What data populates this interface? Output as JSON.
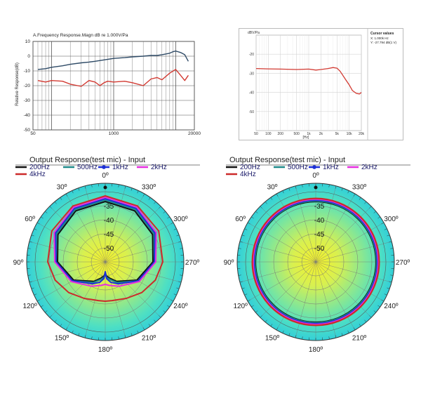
{
  "chart_data": [
    {
      "type": "line",
      "title": "A.Frequency Response.Magn dB re 1.000V/Pa",
      "ylabel": "Relative Response(dB)",
      "xscale": "log",
      "xlim": [
        50,
        20000
      ],
      "ylim": [
        -50,
        10
      ],
      "xticks": [
        "50",
        "1000",
        "20000"
      ],
      "yticks": [
        "10",
        "0",
        "-10",
        "-20",
        "-30",
        "-40",
        "-50"
      ],
      "grid": true,
      "series": [
        {
          "color": "#2e4a66",
          "x": [
            60,
            80,
            100,
            150,
            200,
            300,
            400,
            500,
            700,
            1000,
            1500,
            2000,
            3000,
            4000,
            5000,
            6000,
            7000,
            8000,
            9000,
            10000,
            12000,
            14000,
            16000
          ],
          "y": [
            -9,
            -8.5,
            -7.5,
            -6.5,
            -5.5,
            -4.5,
            -4,
            -3.5,
            -2.5,
            -1.5,
            -1,
            -0.5,
            0,
            0.5,
            0.5,
            1,
            1.5,
            2,
            3,
            3.5,
            2.5,
            1,
            -3.5
          ]
        },
        {
          "color": "#d23a32",
          "x": [
            60,
            80,
            100,
            150,
            200,
            300,
            400,
            500,
            600,
            700,
            800,
            1000,
            1500,
            2000,
            3000,
            4000,
            5000,
            6000,
            8000,
            10000,
            12000,
            14000,
            16000
          ],
          "y": [
            -16.5,
            -17.5,
            -16.5,
            -17,
            -19,
            -20.5,
            -16.5,
            -17.5,
            -20,
            -18,
            -17,
            -17.5,
            -17,
            -18,
            -20,
            -15.5,
            -14.5,
            -16,
            -11.5,
            -9,
            -13,
            -16.5,
            -13
          ]
        }
      ]
    },
    {
      "type": "line",
      "title": "dBV/Pa",
      "xlabel": "[Hz]",
      "xscale": "log",
      "xlim": [
        50,
        20000
      ],
      "ylim": [
        -60,
        -10
      ],
      "xticks": [
        "50",
        "100",
        "200",
        "500",
        "1k",
        "2k",
        "5k",
        "10k",
        "20k"
      ],
      "yticks": [
        "-20",
        "-30",
        "-40",
        "-50"
      ],
      "grid": true,
      "cursor": {
        "title": "Cursor values",
        "x_text": "X: 1.000k Hz",
        "y_text": "Y: -27.794 dB(1 V)"
      },
      "series": [
        {
          "color": "#d23a32",
          "x": [
            50,
            100,
            200,
            500,
            1000,
            1500,
            2000,
            3000,
            4000,
            5000,
            6000,
            8000,
            10000,
            12000,
            15000,
            18000,
            20000
          ],
          "y": [
            -27.5,
            -27.7,
            -27.8,
            -28,
            -27.8,
            -28.3,
            -28,
            -27.5,
            -27,
            -27.3,
            -29,
            -33,
            -36,
            -39,
            -40.5,
            -40.8,
            -40
          ]
        }
      ]
    },
    {
      "type": "polar",
      "title": "Output Response(test mic) - Input",
      "legend": [
        "200Hz",
        "500Hz",
        "1kHz",
        "2kHz",
        "4kHz"
      ],
      "rlim": [
        -55,
        -30
      ],
      "r_ticks": [
        "-35",
        "-40",
        "-45",
        "-50"
      ],
      "angle_labels": [
        "0º",
        "30º",
        "60º",
        "90º",
        "120º",
        "150º",
        "180º",
        "210º",
        "240º",
        "270º",
        "300º",
        "330º"
      ],
      "series": [
        {
          "name": "200Hz",
          "color": "#111111",
          "theta": [
            0,
            30,
            60,
            90,
            120,
            150,
            165,
            175,
            180,
            185,
            195,
            210,
            240,
            270,
            300,
            330
          ],
          "r": [
            -33.5,
            -34,
            -35.5,
            -38,
            -42,
            -47,
            -49,
            -50,
            -51,
            -50,
            -49,
            -47,
            -42,
            -38,
            -35.5,
            -34
          ]
        },
        {
          "name": "500Hz",
          "color": "#1e8a8a",
          "theta": [
            0,
            30,
            60,
            90,
            120,
            150,
            165,
            175,
            180,
            185,
            195,
            210,
            240,
            270,
            300,
            330
          ],
          "r": [
            -33,
            -33.5,
            -35,
            -37.5,
            -41.5,
            -46.5,
            -48.5,
            -49.5,
            -50.5,
            -49.5,
            -48.5,
            -46.5,
            -41.5,
            -37.5,
            -35,
            -33.5
          ]
        },
        {
          "name": "1kHz",
          "color": "#1c2fd6",
          "theta": [
            0,
            30,
            60,
            90,
            120,
            150,
            165,
            175,
            180,
            185,
            195,
            210,
            240,
            270,
            300,
            330
          ],
          "r": [
            -32.5,
            -33,
            -34.5,
            -37.5,
            -41.5,
            -46,
            -47.5,
            -49,
            -51.5,
            -49,
            -47.5,
            -46,
            -41.5,
            -37.5,
            -34.5,
            -33
          ]
        },
        {
          "name": "2kHz",
          "color": "#e62ee0",
          "theta": [
            0,
            30,
            60,
            90,
            120,
            150,
            170,
            180,
            190,
            210,
            240,
            270,
            300,
            330
          ],
          "r": [
            -32,
            -32.5,
            -34,
            -37,
            -41,
            -45,
            -46.5,
            -47,
            -46.5,
            -45,
            -41,
            -37,
            -34,
            -32.5
          ]
        },
        {
          "name": "4kHz",
          "color": "#cc2a2a",
          "theta": [
            0,
            30,
            60,
            90,
            110,
            130,
            150,
            170,
            180,
            190,
            210,
            230,
            250,
            270,
            300,
            330
          ],
          "r": [
            -31.5,
            -32,
            -33,
            -34.5,
            -36,
            -38,
            -40,
            -41,
            -41,
            -41,
            -40,
            -38,
            -36,
            -34.5,
            -33,
            -32
          ]
        }
      ]
    },
    {
      "type": "polar",
      "title": "Output Response(test mic) - Input",
      "legend": [
        "200Hz",
        "500Hz",
        "1kHz",
        "2kHz",
        "4kHz"
      ],
      "rlim": [
        -55,
        -30
      ],
      "r_ticks": [
        "-35",
        "-40",
        "-45",
        "-50"
      ],
      "angle_labels": [
        "0º",
        "30º",
        "60º",
        "90º",
        "120º",
        "150º",
        "180º",
        "210º",
        "240º",
        "270º",
        "300º",
        "330º"
      ],
      "series": [
        {
          "name": "200Hz",
          "color": "#111111",
          "theta": [
            0,
            360
          ],
          "r": [
            -33.5,
            -33.5
          ]
        },
        {
          "name": "500Hz",
          "color": "#1e8a8a",
          "theta": [
            0,
            360
          ],
          "r": [
            -33.3,
            -33.3
          ]
        },
        {
          "name": "1kHz",
          "color": "#1c2fd6",
          "theta": [
            0,
            360
          ],
          "r": [
            -33,
            -33
          ]
        },
        {
          "name": "2kHz",
          "color": "#e62ee0",
          "theta": [
            0,
            360
          ],
          "r": [
            -32.7,
            -32.7
          ]
        },
        {
          "name": "4kHz",
          "color": "#cc2a2a",
          "theta": [
            0,
            360
          ],
          "r": [
            -32.4,
            -32.4
          ]
        }
      ]
    }
  ]
}
